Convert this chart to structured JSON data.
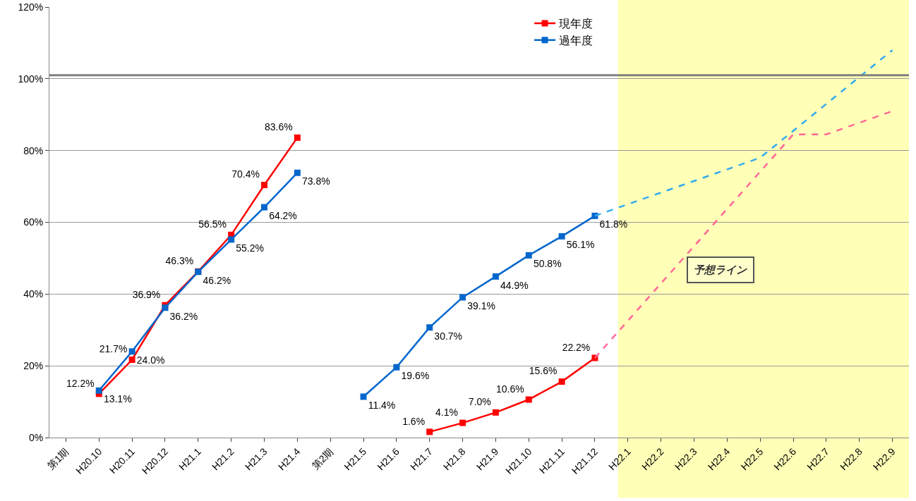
{
  "chart_data": {
    "type": "line",
    "categories": [
      "第1期",
      "H20.10",
      "H20.11",
      "H20.12",
      "H21.1",
      "H21.2",
      "H21.3",
      "H21.4",
      "第2期",
      "H21.5",
      "H21.6",
      "H21.7",
      "H21.8",
      "H21.9",
      "H21.10",
      "H21.11",
      "H21.12",
      "H22.1",
      "H22.2",
      "H22.3",
      "H22.4",
      "H22.5",
      "H22.6",
      "H22.7",
      "H22.8",
      "H22.9"
    ],
    "series": [
      {
        "name": "現年度",
        "color": "#ff0000",
        "marker": "square",
        "line_style": "solid",
        "values": [
          null,
          12.2,
          21.7,
          36.9,
          46.3,
          56.5,
          70.4,
          83.6,
          null,
          null,
          null,
          1.6,
          4.1,
          7.0,
          10.6,
          15.6,
          22.2,
          null,
          null,
          null,
          null,
          null,
          null,
          null,
          null,
          null
        ],
        "value_labels": [
          null,
          "12.2%",
          "21.7%",
          "36.9%",
          "46.3%",
          "56.5%",
          "70.4%",
          "83.6%",
          null,
          null,
          null,
          "1.6%",
          "4.1%",
          "7.0%",
          "10.6%",
          "15.6%",
          "22.2%",
          null,
          null,
          null,
          null,
          null,
          null,
          null,
          null,
          null
        ]
      },
      {
        "name": "過年度",
        "color": "#0066cc",
        "marker": "square",
        "line_style": "solid",
        "values": [
          null,
          13.1,
          24.0,
          36.2,
          46.2,
          55.2,
          64.2,
          73.8,
          null,
          11.4,
          19.6,
          30.7,
          39.1,
          44.9,
          50.8,
          56.1,
          61.8,
          null,
          null,
          null,
          null,
          null,
          null,
          null,
          null,
          null
        ],
        "value_labels": [
          null,
          "13.1%",
          "24.0%",
          "36.2%",
          "46.2%",
          "55.2%",
          "64.2%",
          "73.8%",
          null,
          "11.4%",
          "19.6%",
          "30.7%",
          "39.1%",
          "44.9%",
          "50.8%",
          "56.1%",
          "61.8%",
          null,
          null,
          null,
          null,
          null,
          null,
          null,
          null,
          null
        ]
      },
      {
        "color": "#ff6699",
        "marker": "none",
        "line_style": "dashed",
        "x": [
          "H21.12",
          "H22.6",
          "H22.7",
          "H22.9"
        ],
        "values": [
          22.2,
          84.5,
          84.5,
          91
        ]
      },
      {
        "color": "#33aaee",
        "marker": "none",
        "line_style": "dashed",
        "x": [
          "H21.12",
          "H22.5",
          "H22.9"
        ],
        "values": [
          61.8,
          78,
          108
        ]
      }
    ],
    "ylim": [
      0,
      120
    ],
    "yticks": [
      {
        "value": 0,
        "label": "0%"
      },
      {
        "value": 20,
        "label": "20%"
      },
      {
        "value": 40,
        "label": "40%"
      },
      {
        "value": 60,
        "label": "60%"
      },
      {
        "value": 80,
        "label": "80%"
      },
      {
        "value": 100,
        "label": "100%"
      },
      {
        "value": 120,
        "label": "120%"
      }
    ],
    "grid": "y",
    "legend": "top",
    "ref_lines": [
      {
        "axis": "y",
        "value": 101,
        "color": "#808080"
      }
    ],
    "bands": [
      {
        "axis": "x",
        "from": "H22.1",
        "to": "H22.9",
        "color": "#ffff99"
      }
    ],
    "annotations": [
      "予想ライン"
    ]
  }
}
